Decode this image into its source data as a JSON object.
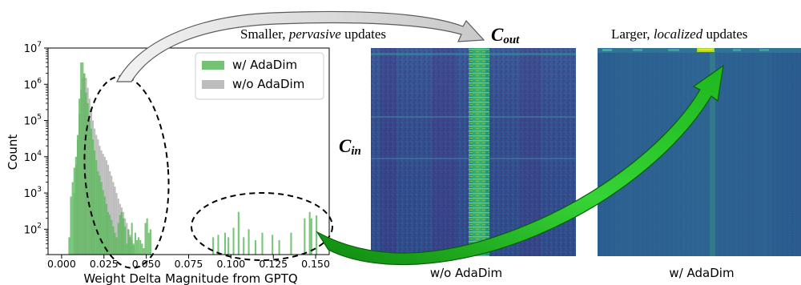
{
  "figure": {
    "cap_left_pre": "Smaller, ",
    "cap_left_em": "pervasive",
    "cap_left_post": " updates",
    "cap_right_pre": "Larger, ",
    "cap_right_em": "localized",
    "cap_right_post": " updates",
    "cout_main": "C",
    "cout_sub": "out",
    "cin_main": "C",
    "cin_sub": "in",
    "heatmap_left_label": "w/o AdaDim",
    "heatmap_right_label": "w/ AdaDim"
  },
  "chart_data": {
    "type": "bar",
    "xlabel": "Weight Delta Magnitude from GPTQ",
    "ylabel": "Count",
    "yscale": "log",
    "ylim": [
      20,
      10000000
    ],
    "xlim": [
      -0.008,
      0.158
    ],
    "xticks": [
      "0.000",
      "0.025",
      "0.050",
      "0.075",
      "0.100",
      "0.125",
      "0.150"
    ],
    "yticks": [
      {
        "base": "10",
        "exp": "2",
        "value": 100
      },
      {
        "base": "10",
        "exp": "3",
        "value": 1000
      },
      {
        "base": "10",
        "exp": "4",
        "value": 10000
      },
      {
        "base": "10",
        "exp": "5",
        "value": 100000
      },
      {
        "base": "10",
        "exp": "6",
        "value": 1000000
      },
      {
        "base": "10",
        "exp": "7",
        "value": 10000000
      }
    ],
    "legend_position": "upper right",
    "colors": {
      "with": "#5cb85c",
      "without": "#bdbdbd"
    },
    "series": [
      {
        "name": "w/ AdaDim",
        "x": [
          0.0045,
          0.0055,
          0.0065,
          0.0075,
          0.0085,
          0.0095,
          0.0105,
          0.0115,
          0.0125,
          0.0135,
          0.0145,
          0.0155,
          0.0165,
          0.0175,
          0.0185,
          0.0195,
          0.0205,
          0.0215,
          0.0225,
          0.0235,
          0.0245,
          0.0255,
          0.0265,
          0.0275,
          0.0285,
          0.0295,
          0.0305,
          0.0315,
          0.0325,
          0.0335,
          0.0345,
          0.0355,
          0.0365,
          0.0375,
          0.0385,
          0.0395,
          0.0405,
          0.0415,
          0.0425,
          0.0435,
          0.0445,
          0.0455,
          0.0465,
          0.0475,
          0.0485,
          0.0495,
          0.0505,
          0.0515,
          0.0525,
          0.0895,
          0.0925,
          0.0965,
          0.0985,
          0.1015,
          0.1045,
          0.1075,
          0.1105,
          0.1145,
          0.1185,
          0.1245,
          0.1285,
          0.1355,
          0.1435,
          0.1465,
          0.1475,
          0.1505
        ],
        "values": [
          60,
          800,
          2000,
          5000,
          10000,
          40000,
          400000,
          4000000,
          4000000,
          2000000,
          600000,
          300000,
          100000,
          60000,
          30000,
          15000,
          8000,
          4000,
          3000,
          2000,
          1200,
          800,
          500,
          300,
          250,
          180,
          120,
          80,
          60,
          150,
          250,
          300,
          200,
          120,
          40,
          100,
          60,
          150,
          40,
          80,
          50,
          60,
          50,
          40,
          30,
          150,
          200,
          80,
          100,
          60,
          70,
          80,
          60,
          110,
          300,
          60,
          100,
          50,
          80,
          70,
          50,
          80,
          200,
          300,
          200,
          240
        ]
      },
      {
        "name": "w/o AdaDim",
        "x": [
          0.0075,
          0.0085,
          0.0095,
          0.0105,
          0.0115,
          0.0125,
          0.0135,
          0.0145,
          0.0155,
          0.0165,
          0.0175,
          0.0185,
          0.0195,
          0.0205,
          0.0215,
          0.0225,
          0.0235,
          0.0245,
          0.0255,
          0.0265,
          0.0275,
          0.0285,
          0.0295,
          0.0305,
          0.0315,
          0.0325,
          0.0335,
          0.0345,
          0.0355,
          0.0365,
          0.0375,
          0.0385,
          0.0395,
          0.0405,
          0.0415,
          0.0425
        ],
        "values": [
          1000,
          6000,
          30000,
          150000,
          700000,
          1500000,
          2000000,
          1500000,
          800000,
          400000,
          200000,
          100000,
          60000,
          40000,
          30000,
          20000,
          15000,
          12000,
          10000,
          8000,
          6000,
          4000,
          3000,
          2000,
          1500,
          1000,
          700,
          500,
          400,
          300,
          200,
          150,
          100,
          70,
          50,
          35
        ]
      }
    ]
  }
}
